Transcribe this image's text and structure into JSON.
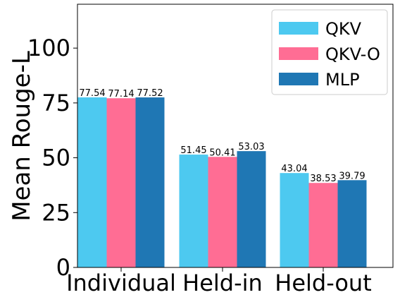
{
  "chart_data": {
    "type": "bar",
    "title": "",
    "xlabel": "",
    "ylabel": "Mean Rouge-L",
    "ylim": [
      0,
      120
    ],
    "yticks": [
      0,
      25,
      50,
      75,
      100
    ],
    "categories": [
      "Individual",
      "Held-in",
      "Held-out"
    ],
    "series": [
      {
        "name": "QKV",
        "color": "#4DC9F0",
        "values": [
          77.54,
          51.45,
          43.04
        ]
      },
      {
        "name": "QKV-O",
        "color": "#FF6D94",
        "values": [
          77.14,
          50.41,
          38.53
        ]
      },
      {
        "name": "MLP",
        "color": "#1F77B4",
        "values": [
          77.52,
          53.03,
          39.79
        ]
      }
    ],
    "data_labels": true,
    "legend": "top-right",
    "grid": false
  }
}
